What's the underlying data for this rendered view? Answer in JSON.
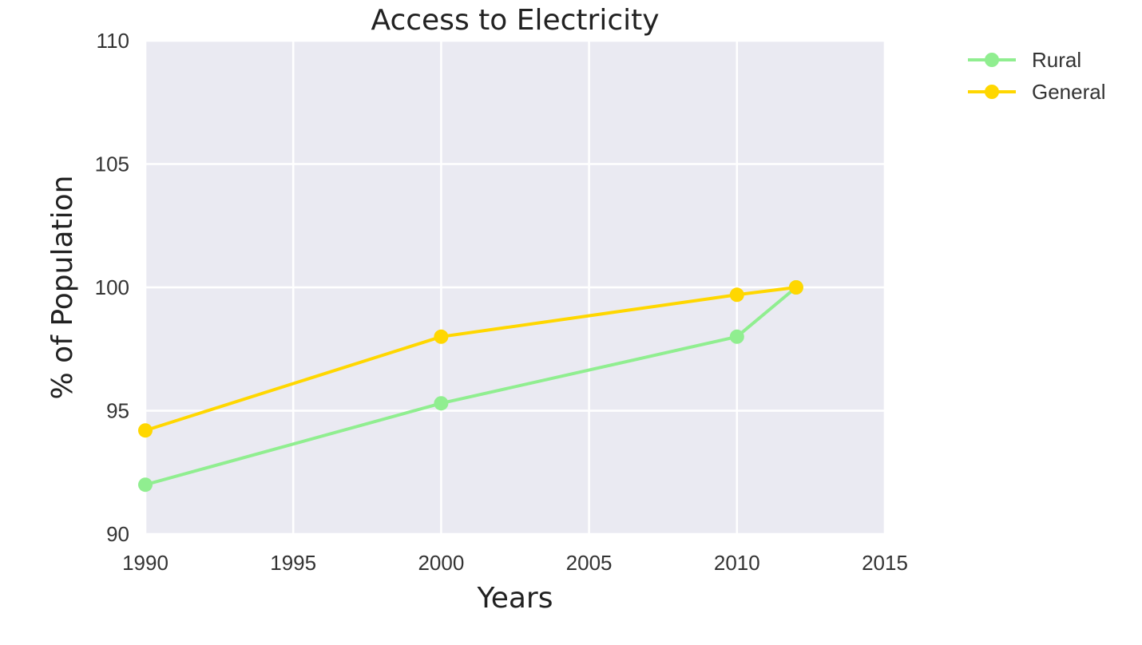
{
  "chart_data": {
    "type": "line",
    "title": "Access to Electricity",
    "xlabel": "Years",
    "ylabel": "% of Population",
    "xlim": [
      1990,
      2015
    ],
    "ylim": [
      90,
      110
    ],
    "xticks": [
      1990,
      1995,
      2000,
      2005,
      2010,
      2015
    ],
    "yticks": [
      90,
      95,
      100,
      105,
      110
    ],
    "grid": true,
    "legend_position": "outside-top-right",
    "plot_background": "#eaeaf2",
    "series": [
      {
        "name": "Rural",
        "color": "#90ee90",
        "x": [
          1990,
          2000,
          2010,
          2012
        ],
        "y": [
          92.0,
          95.3,
          98.0,
          100.0
        ]
      },
      {
        "name": "General",
        "color": "#ffd700",
        "x": [
          1990,
          2000,
          2010,
          2012
        ],
        "y": [
          94.2,
          98.0,
          99.7,
          100.0
        ]
      }
    ]
  }
}
